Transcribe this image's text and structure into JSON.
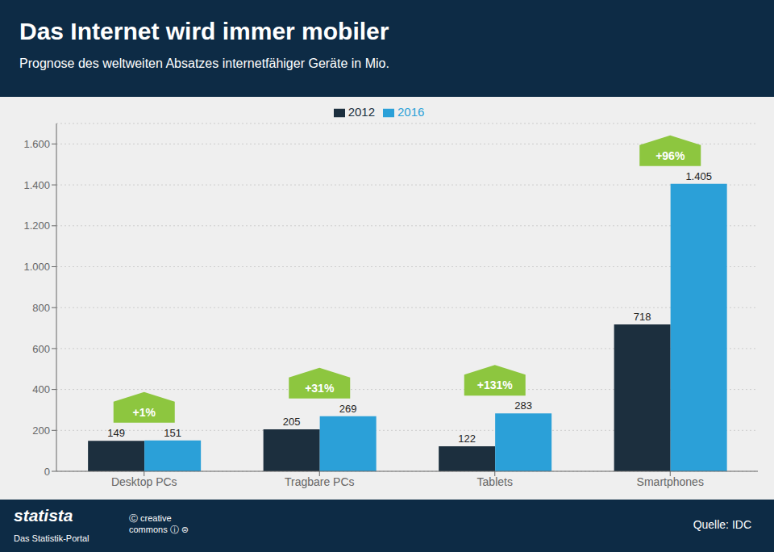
{
  "chart_data": {
    "type": "bar",
    "title": "Das Internet wird immer mobiler",
    "subtitle": "Prognose des weltweiten Absatzes internetfähiger Geräte in Mio.",
    "categories": [
      "Desktop PCs",
      "Tragbare PCs",
      "Tablets",
      "Smartphones"
    ],
    "series": [
      {
        "name": "2012",
        "color": "#1c2f3e",
        "values": [
          149,
          205,
          122,
          718
        ]
      },
      {
        "name": "2016",
        "color": "#2ba0d8",
        "values": [
          151,
          269,
          283,
          1405
        ],
        "value_labels": [
          "151",
          "269",
          "283",
          "1.405"
        ]
      }
    ],
    "ylim": [
      0,
      1700
    ],
    "yticks": [
      0,
      200,
      400,
      600,
      800,
      {
        "value": 1000,
        "label": "1.000"
      },
      {
        "value": 1200,
        "label": "1.200"
      },
      {
        "value": 1400,
        "label": "1.400"
      },
      {
        "value": 1600,
        "label": "1.600"
      }
    ],
    "grid": true,
    "legend": "top",
    "data_labels": true,
    "annotations": [
      {
        "text": "+1%",
        "category": "Desktop PCs",
        "color": "#8dc63f"
      },
      {
        "text": "+31%",
        "category": "Tragbare PCs",
        "color": "#8dc63f"
      },
      {
        "text": "+131%",
        "category": "Tablets",
        "color": "#8dc63f"
      },
      {
        "text": "+96%",
        "category": "Smartphones",
        "color": "#8dc63f"
      },
      {
        "text": "statista"
      },
      {
        "text": "Das Statistik-Portal"
      },
      {
        "text": "Ⓒ creative\ncommons  ⓘ  ⊜"
      },
      {
        "text": "Quelle: IDC"
      }
    ]
  }
}
